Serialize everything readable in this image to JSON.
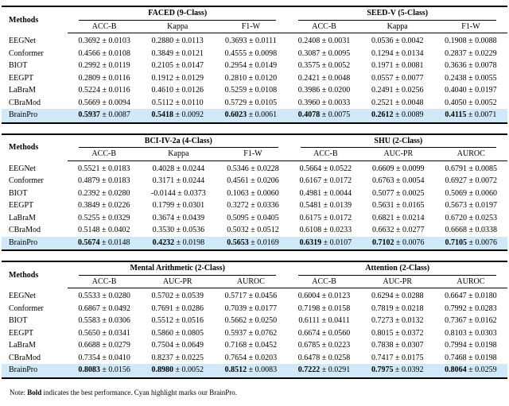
{
  "colors": {
    "highlight": "#cfe9f7",
    "rule": "#000000",
    "background": "#ffffff"
  },
  "note": {
    "prefix": "Note: ",
    "bold_word": "Bold",
    "rest": " indicates the best performance. Cyan highlight marks our BrainPro."
  },
  "tables": [
    {
      "methods_label": "Methods",
      "groups": [
        {
          "title": "FACED (9-Class)",
          "metrics": [
            "ACC-B",
            "Kappa",
            "F1-W"
          ]
        },
        {
          "title": "SEED-V (5-Class)",
          "metrics": [
            "ACC-B",
            "Kappa",
            "F1-W"
          ]
        }
      ],
      "rows": [
        {
          "method": "EEGNet",
          "highlight": false,
          "bold": false,
          "cells": [
            [
              "0.3692",
              "0.0103"
            ],
            [
              "0.2880",
              "0.0113"
            ],
            [
              "0.3693",
              "0.0111"
            ],
            [
              "0.2408",
              "0.0031"
            ],
            [
              "0.0536",
              "0.0042"
            ],
            [
              "0.1908",
              "0.0088"
            ]
          ]
        },
        {
          "method": "Conformer",
          "highlight": false,
          "bold": false,
          "cells": [
            [
              "0.4566",
              "0.0108"
            ],
            [
              "0.3849",
              "0.0121"
            ],
            [
              "0.4555",
              "0.0098"
            ],
            [
              "0.3087",
              "0.0095"
            ],
            [
              "0.1294",
              "0.0134"
            ],
            [
              "0.2837",
              "0.0229"
            ]
          ]
        },
        {
          "method": "BIOT",
          "highlight": false,
          "bold": false,
          "cells": [
            [
              "0.2992",
              "0.0119"
            ],
            [
              "0.2105",
              "0.0147"
            ],
            [
              "0.2954",
              "0.0149"
            ],
            [
              "0.3575",
              "0.0052"
            ],
            [
              "0.1971",
              "0.0081"
            ],
            [
              "0.3636",
              "0.0078"
            ]
          ]
        },
        {
          "method": "EEGPT",
          "highlight": false,
          "bold": false,
          "cells": [
            [
              "0.2809",
              "0.0116"
            ],
            [
              "0.1912",
              "0.0129"
            ],
            [
              "0.2810",
              "0.0120"
            ],
            [
              "0.2421",
              "0.0048"
            ],
            [
              "0.0557",
              "0.0077"
            ],
            [
              "0.2438",
              "0.0055"
            ]
          ]
        },
        {
          "method": "LaBraM",
          "highlight": false,
          "bold": false,
          "cells": [
            [
              "0.5224",
              "0.0116"
            ],
            [
              "0.4610",
              "0.0126"
            ],
            [
              "0.5259",
              "0.0108"
            ],
            [
              "0.3986",
              "0.0200"
            ],
            [
              "0.2491",
              "0.0256"
            ],
            [
              "0.4040",
              "0.0197"
            ]
          ]
        },
        {
          "method": "CBraMod",
          "highlight": false,
          "bold": false,
          "cells": [
            [
              "0.5669",
              "0.0094"
            ],
            [
              "0.5112",
              "0.0110"
            ],
            [
              "0.5729",
              "0.0105"
            ],
            [
              "0.3960",
              "0.0033"
            ],
            [
              "0.2521",
              "0.0048"
            ],
            [
              "0.4050",
              "0.0052"
            ]
          ]
        },
        {
          "method": "BrainPro",
          "highlight": true,
          "bold": true,
          "cells": [
            [
              "0.5937",
              "0.0087"
            ],
            [
              "0.5418",
              "0.0092"
            ],
            [
              "0.6023",
              "0.0061"
            ],
            [
              "0.4078",
              "0.0075"
            ],
            [
              "0.2612",
              "0.0089"
            ],
            [
              "0.4115",
              "0.0071"
            ]
          ]
        }
      ]
    },
    {
      "methods_label": "Methods",
      "groups": [
        {
          "title": "BCI-IV-2a (4-Class)",
          "metrics": [
            "ACC-B",
            "Kappa",
            "F1-W"
          ]
        },
        {
          "title": "SHU (2-Class)",
          "metrics": [
            "ACC-B",
            "AUC-PR",
            "AUROC"
          ]
        }
      ],
      "rows": [
        {
          "method": "EEGNet",
          "highlight": false,
          "bold": false,
          "cells": [
            [
              "0.5521",
              "0.0183"
            ],
            [
              "0.4028",
              "0.0244"
            ],
            [
              "0.5346",
              "0.0228"
            ],
            [
              "0.5664",
              "0.0522"
            ],
            [
              "0.6609",
              "0.0099"
            ],
            [
              "0.6791",
              "0.0085"
            ]
          ]
        },
        {
          "method": "Conformer",
          "highlight": false,
          "bold": false,
          "cells": [
            [
              "0.4879",
              "0.0183"
            ],
            [
              "0.3171",
              "0.0244"
            ],
            [
              "0.4561",
              "0.0206"
            ],
            [
              "0.6167",
              "0.0172"
            ],
            [
              "0.6763",
              "0.0054"
            ],
            [
              "0.6927",
              "0.0072"
            ]
          ]
        },
        {
          "method": "BIOT",
          "highlight": false,
          "bold": false,
          "cells": [
            [
              "0.2392",
              "0.0280"
            ],
            [
              "-0.0144",
              "0.0373"
            ],
            [
              "0.1063",
              "0.0060"
            ],
            [
              "0.4981",
              "0.0044"
            ],
            [
              "0.5077",
              "0.0025"
            ],
            [
              "0.5069",
              "0.0060"
            ]
          ]
        },
        {
          "method": "EEGPT",
          "highlight": false,
          "bold": false,
          "cells": [
            [
              "0.3849",
              "0.0226"
            ],
            [
              "0.1799",
              "0.0301"
            ],
            [
              "0.3272",
              "0.0336"
            ],
            [
              "0.5481",
              "0.0139"
            ],
            [
              "0.5631",
              "0.0165"
            ],
            [
              "0.5673",
              "0.0197"
            ]
          ]
        },
        {
          "method": "LaBraM",
          "highlight": false,
          "bold": false,
          "cells": [
            [
              "0.5255",
              "0.0329"
            ],
            [
              "0.3674",
              "0.0439"
            ],
            [
              "0.5095",
              "0.0405"
            ],
            [
              "0.6175",
              "0.0172"
            ],
            [
              "0.6821",
              "0.0214"
            ],
            [
              "0.6720",
              "0.0253"
            ]
          ]
        },
        {
          "method": "CBraMod",
          "highlight": false,
          "bold": false,
          "cells": [
            [
              "0.5148",
              "0.0402"
            ],
            [
              "0.3530",
              "0.0536"
            ],
            [
              "0.5032",
              "0.0512"
            ],
            [
              "0.6108",
              "0.0233"
            ],
            [
              "0.6632",
              "0.0277"
            ],
            [
              "0.6668",
              "0.0338"
            ]
          ]
        },
        {
          "method": "BrainPro",
          "highlight": true,
          "bold": true,
          "cells": [
            [
              "0.5674",
              "0.0148"
            ],
            [
              "0.4232",
              "0.0198"
            ],
            [
              "0.5653",
              "0.0169"
            ],
            [
              "0.6319",
              "0.0107"
            ],
            [
              "0.7102",
              "0.0076"
            ],
            [
              "0.7105",
              "0.0076"
            ]
          ]
        }
      ]
    },
    {
      "methods_label": "Methods",
      "groups": [
        {
          "title": "Mental Arithmetic (2-Class)",
          "metrics": [
            "ACC-B",
            "AUC-PR",
            "AUROC"
          ]
        },
        {
          "title": "Attention (2-Class)",
          "metrics": [
            "ACC-B",
            "AUC-PR",
            "AUROC"
          ]
        }
      ],
      "rows": [
        {
          "method": "EEGNet",
          "highlight": false,
          "bold": false,
          "cells": [
            [
              "0.5533",
              "0.0280"
            ],
            [
              "0.5702",
              "0.0539"
            ],
            [
              "0.5717",
              "0.0456"
            ],
            [
              "0.6004",
              "0.0123"
            ],
            [
              "0.6294",
              "0.0288"
            ],
            [
              "0.6647",
              "0.0180"
            ]
          ]
        },
        {
          "method": "Conformer",
          "highlight": false,
          "bold": false,
          "cells": [
            [
              "0.6867",
              "0.0492"
            ],
            [
              "0.7691",
              "0.0286"
            ],
            [
              "0.7039",
              "0.0177"
            ],
            [
              "0.7198",
              "0.0158"
            ],
            [
              "0.7819",
              "0.0218"
            ],
            [
              "0.7992",
              "0.0283"
            ]
          ]
        },
        {
          "method": "BIOT",
          "highlight": false,
          "bold": false,
          "cells": [
            [
              "0.5583",
              "0.0306"
            ],
            [
              "0.5512",
              "0.0516"
            ],
            [
              "0.5662",
              "0.0250"
            ],
            [
              "0.6111",
              "0.0411"
            ],
            [
              "0.7273",
              "0.0132"
            ],
            [
              "0.7367",
              "0.0162"
            ]
          ]
        },
        {
          "method": "EEGPT",
          "highlight": false,
          "bold": false,
          "cells": [
            [
              "0.5650",
              "0.0341"
            ],
            [
              "0.5860",
              "0.0805"
            ],
            [
              "0.5937",
              "0.0762"
            ],
            [
              "0.6674",
              "0.0560"
            ],
            [
              "0.8015",
              "0.0372"
            ],
            [
              "0.8103",
              "0.0303"
            ]
          ]
        },
        {
          "method": "LaBraM",
          "highlight": false,
          "bold": false,
          "cells": [
            [
              "0.6688",
              "0.0279"
            ],
            [
              "0.7504",
              "0.0649"
            ],
            [
              "0.7168",
              "0.0452"
            ],
            [
              "0.6785",
              "0.0223"
            ],
            [
              "0.7838",
              "0.0307"
            ],
            [
              "0.7994",
              "0.0198"
            ]
          ]
        },
        {
          "method": "CBraMod",
          "highlight": false,
          "bold": false,
          "cells": [
            [
              "0.7354",
              "0.0410"
            ],
            [
              "0.8237",
              "0.0225"
            ],
            [
              "0.7654",
              "0.0203"
            ],
            [
              "0.6478",
              "0.0258"
            ],
            [
              "0.7417",
              "0.0175"
            ],
            [
              "0.7468",
              "0.0198"
            ]
          ]
        },
        {
          "method": "BrainPro",
          "highlight": true,
          "bold": true,
          "cells": [
            [
              "0.8083",
              "0.0156"
            ],
            [
              "0.8980",
              "0.0052"
            ],
            [
              "0.8512",
              "0.0083"
            ],
            [
              "0.7222",
              "0.0291"
            ],
            [
              "0.7975",
              "0.0392"
            ],
            [
              "0.8064",
              "0.0259"
            ]
          ]
        }
      ]
    }
  ]
}
